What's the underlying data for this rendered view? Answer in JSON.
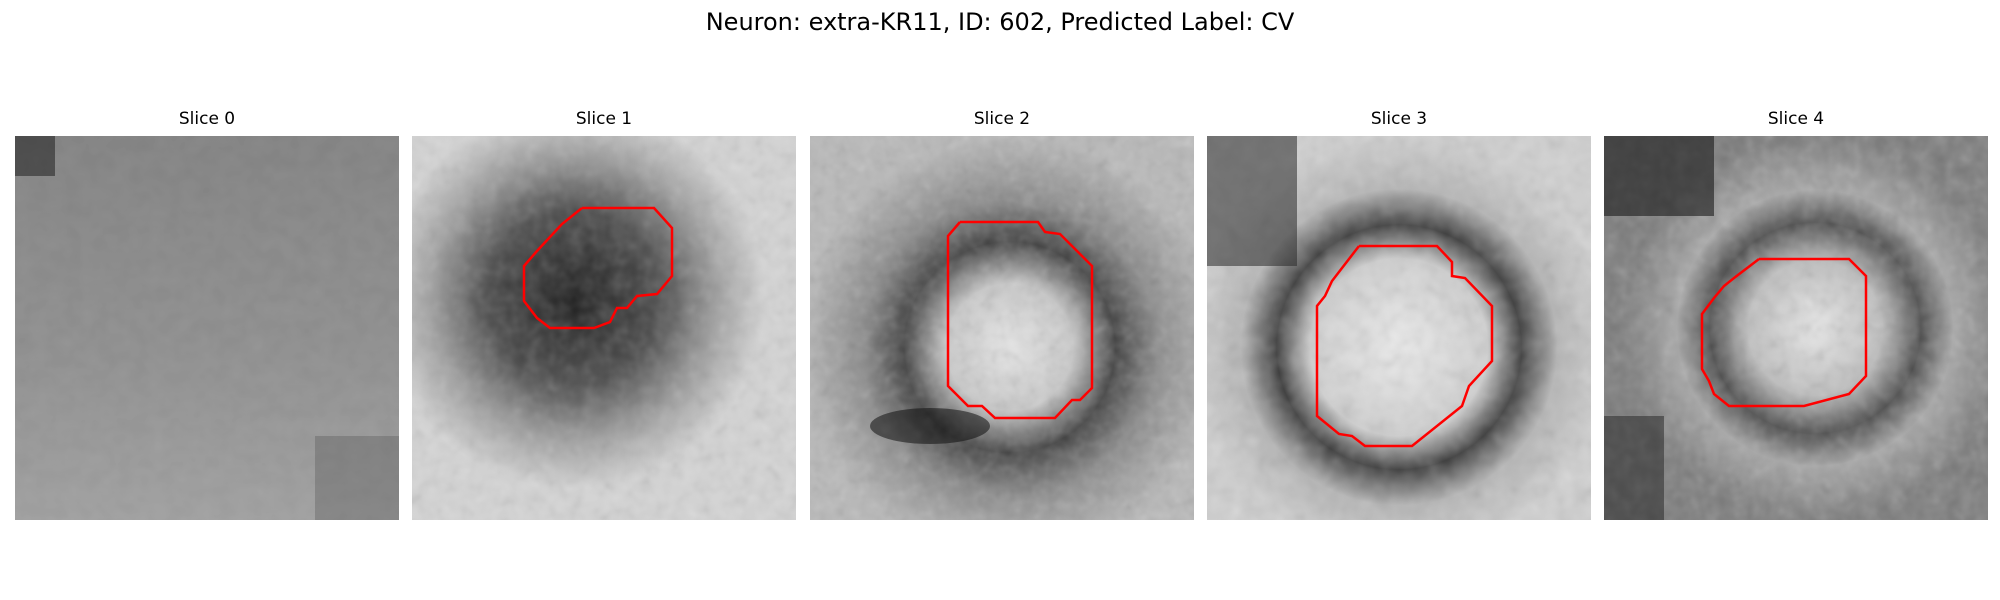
{
  "figure": {
    "title": "Neuron: extra-KR11, ID: 602, Predicted Label: CV"
  },
  "colors": {
    "contour": "#ff0000",
    "background": "#ffffff"
  },
  "slices": [
    {
      "title": "Slice 0",
      "has_contour": false
    },
    {
      "title": "Slice 1",
      "has_contour": true
    },
    {
      "title": "Slice 2",
      "has_contour": true
    },
    {
      "title": "Slice 3",
      "has_contour": true
    },
    {
      "title": "Slice 4",
      "has_contour": true
    }
  ]
}
